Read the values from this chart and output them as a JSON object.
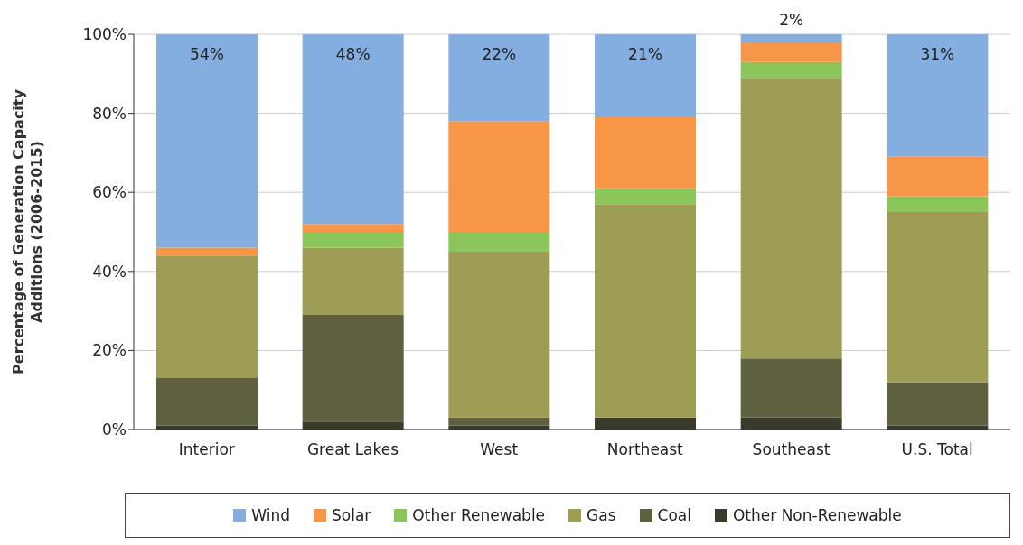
{
  "chart_data": {
    "type": "bar",
    "stacked": true,
    "ylabel": "Percentage of Generation Capacity Additions (2006-2015)",
    "categories": [
      "Interior",
      "Great Lakes",
      "West",
      "Northeast",
      "Southeast",
      "U.S. Total"
    ],
    "series": [
      {
        "name": "Other Non-Renewable",
        "color": "#3b3b2c",
        "values": [
          1,
          2,
          1,
          3,
          3,
          1
        ]
      },
      {
        "name": "Coal",
        "color": "#5f6040",
        "values": [
          12,
          27,
          2,
          0,
          15,
          11
        ]
      },
      {
        "name": "Gas",
        "color": "#9e9d55",
        "values": [
          31,
          17,
          42,
          54,
          71,
          43
        ]
      },
      {
        "name": "Other Renewable",
        "color": "#8cc65a",
        "values": [
          0,
          4,
          5,
          4,
          4,
          4
        ]
      },
      {
        "name": "Solar",
        "color": "#f79646",
        "values": [
          2,
          2,
          28,
          18,
          5,
          10
        ]
      },
      {
        "name": "Wind",
        "color": "#84ade0",
        "values": [
          54,
          48,
          22,
          21,
          2,
          31
        ],
        "value_labels": [
          "54%",
          "48%",
          "22%",
          "21%",
          "2%",
          "31%"
        ]
      }
    ],
    "ylim": [
      0,
      100
    ],
    "yticks": [
      {
        "value": 0,
        "label": "0%"
      },
      {
        "value": 20,
        "label": "20%"
      },
      {
        "value": 40,
        "label": "40%"
      },
      {
        "value": 60,
        "label": "60%"
      },
      {
        "value": 80,
        "label": "80%"
      },
      {
        "value": 100,
        "label": "100%"
      }
    ],
    "grid": "y",
    "legend": "bottom"
  }
}
